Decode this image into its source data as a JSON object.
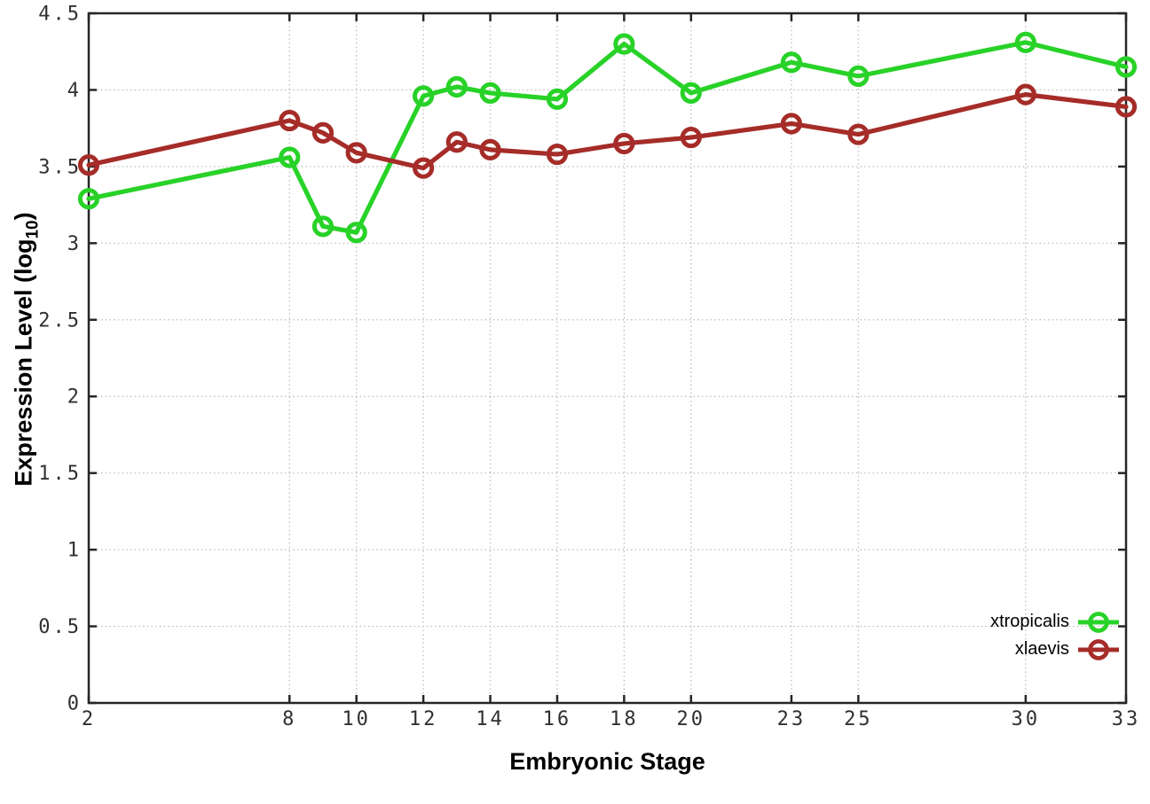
{
  "chart_data": {
    "type": "line",
    "title": "",
    "xlabel": "Embryonic Stage",
    "ylabel": "Expression Level (log10)",
    "ylabel_parts": {
      "prefix": "Expression Level (log",
      "sub": "10",
      "suffix": ")"
    },
    "xlim": [
      2,
      33
    ],
    "ylim": [
      0,
      4.5
    ],
    "grid": true,
    "legend_position": "inside-bottom-right",
    "axis_color": "#262626",
    "grid_color": "#b8b8b8",
    "tick_label_color": "#303030",
    "xticks": [
      {
        "v": 2,
        "label": "2"
      },
      {
        "v": 8,
        "label": "8"
      },
      {
        "v": 10,
        "label": "10"
      },
      {
        "v": 12,
        "label": "12"
      },
      {
        "v": 14,
        "label": "14"
      },
      {
        "v": 16,
        "label": "16"
      },
      {
        "v": 18,
        "label": "18"
      },
      {
        "v": 20,
        "label": "20"
      },
      {
        "v": 23,
        "label": "23"
      },
      {
        "v": 25,
        "label": "25"
      },
      {
        "v": 30,
        "label": "30"
      },
      {
        "v": 33,
        "label": "33"
      }
    ],
    "yticks": [
      {
        "v": 0,
        "label": "0"
      },
      {
        "v": 0.5,
        "label": "0.5"
      },
      {
        "v": 1,
        "label": "1"
      },
      {
        "v": 1.5,
        "label": "1.5"
      },
      {
        "v": 2,
        "label": "2"
      },
      {
        "v": 2.5,
        "label": "2.5"
      },
      {
        "v": 3,
        "label": "3"
      },
      {
        "v": 3.5,
        "label": "3.5"
      },
      {
        "v": 4,
        "label": "4"
      },
      {
        "v": 4.5,
        "label": "4.5"
      }
    ],
    "x": [
      2,
      8,
      9,
      10,
      12,
      13,
      14,
      16,
      18,
      20,
      23,
      25,
      30,
      33
    ],
    "series": [
      {
        "name": "xtropicalis",
        "color": "#28d228",
        "marker": "open-circle",
        "values": [
          3.29,
          3.56,
          3.11,
          3.07,
          3.96,
          4.02,
          3.98,
          3.94,
          4.3,
          3.98,
          4.18,
          4.09,
          4.31,
          4.15
        ]
      },
      {
        "name": "xlaevis",
        "color": "#a52c28",
        "marker": "open-circle",
        "values": [
          3.51,
          3.8,
          3.72,
          3.59,
          3.49,
          3.66,
          3.61,
          3.58,
          3.65,
          3.69,
          3.78,
          3.71,
          3.97,
          3.89
        ]
      }
    ]
  }
}
